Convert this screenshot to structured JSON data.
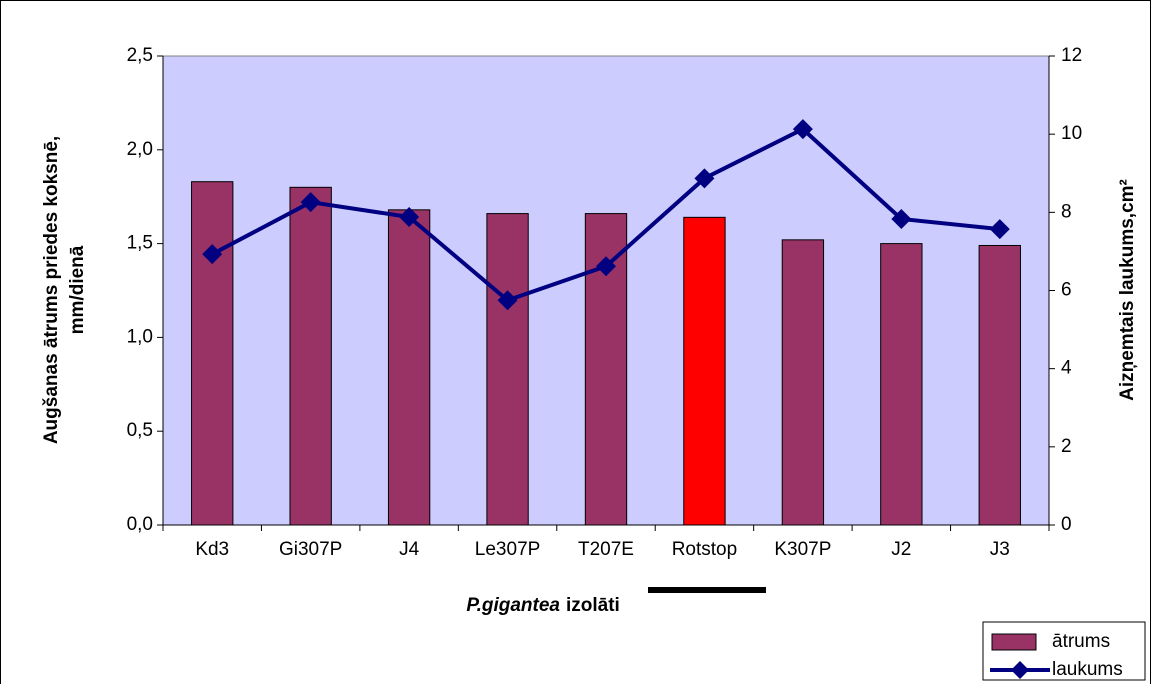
{
  "chart_data": {
    "type": "bar",
    "xlabel": [
      "P.gigantea",
      "izolāti"
    ],
    "ylabel": [
      "Augšanas ātrums priedes koksnē,",
      "mm/dienā"
    ],
    "y2label": "Aizņemtais laukums,cm²",
    "categories": [
      "Kd3",
      "Gi307P",
      "J4",
      "Le307P",
      "T207E",
      "Rotstop",
      "K307P",
      "J2",
      "J3"
    ],
    "series": [
      {
        "name": "ātrums",
        "type": "bar",
        "color": "#993366",
        "colors": [
          "#993366",
          "#993366",
          "#993366",
          "#993366",
          "#993366",
          "#ff0000",
          "#993366",
          "#993366",
          "#993366"
        ],
        "values": [
          1.83,
          1.8,
          1.68,
          1.66,
          1.66,
          1.64,
          1.52,
          1.5,
          1.49
        ]
      },
      {
        "name": "laukums",
        "type": "line",
        "axis": "y2",
        "color": "#000080",
        "values": [
          6.93,
          8.26,
          7.88,
          5.75,
          6.62,
          8.87,
          10.13,
          7.83,
          7.57
        ]
      }
    ],
    "ylim": [
      0,
      2.5
    ],
    "yticks": [
      {
        "value": 0,
        "label": "0,0"
      },
      {
        "value": 0.5,
        "label": "0,5"
      },
      {
        "value": 1,
        "label": "1,0"
      },
      {
        "value": 1.5,
        "label": "1,5"
      },
      {
        "value": 2,
        "label": "2,0"
      },
      {
        "value": 2.5,
        "label": "2,5"
      }
    ],
    "y2lim": [
      0,
      12
    ],
    "y2ticks": [
      0,
      2,
      4,
      6,
      8,
      10,
      12
    ],
    "plot_background": "#ccccff"
  }
}
